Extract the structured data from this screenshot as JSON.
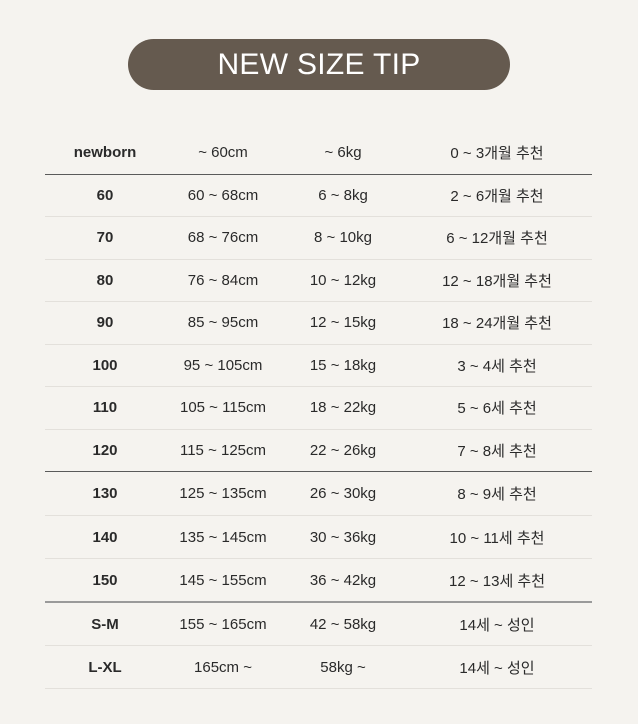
{
  "title": "NEW SIZE TIP",
  "colors": {
    "pill_background": "#655a4f",
    "page_background": "#f5f3ef"
  },
  "rows": [
    {
      "size": "newborn",
      "height": "~ 60cm",
      "weight": "~ 6kg",
      "age": "0 ~ 3개월 추천"
    },
    {
      "size": "60",
      "height": "60 ~ 68cm",
      "weight": "6 ~ 8kg",
      "age": "2 ~ 6개월 추천"
    },
    {
      "size": "70",
      "height": "68 ~ 76cm",
      "weight": "8 ~ 10kg",
      "age": "6 ~ 12개월 추천"
    },
    {
      "size": "80",
      "height": "76 ~ 84cm",
      "weight": "10 ~ 12kg",
      "age": "12 ~ 18개월 추천"
    },
    {
      "size": "90",
      "height": "85 ~ 95cm",
      "weight": "12 ~ 15kg",
      "age": "18 ~ 24개월 추천"
    },
    {
      "size": "100",
      "height": "95 ~ 105cm",
      "weight": "15 ~ 18kg",
      "age": "3 ~ 4세 추천"
    },
    {
      "size": "110",
      "height": "105 ~ 115cm",
      "weight": "18 ~ 22kg",
      "age": "5 ~ 6세 추천"
    },
    {
      "size": "120",
      "height": "115 ~ 125cm",
      "weight": "22 ~ 26kg",
      "age": "7 ~ 8세 추천"
    },
    {
      "size": "130",
      "height": "125 ~ 135cm",
      "weight": "26 ~ 30kg",
      "age": "8 ~ 9세 추천"
    },
    {
      "size": "140",
      "height": "135 ~ 145cm",
      "weight": "30 ~ 36kg",
      "age": "10 ~ 11세 추천"
    },
    {
      "size": "150",
      "height": "145 ~ 155cm",
      "weight": "36 ~ 42kg",
      "age": "12 ~ 13세 추천"
    },
    {
      "size": "S-M",
      "height": "155 ~ 165cm",
      "weight": "42 ~ 58kg",
      "age": "14세 ~ 성인"
    },
    {
      "size": "L-XL",
      "height": "165cm ~",
      "weight": "58kg ~",
      "age": "14세 ~ 성인"
    }
  ]
}
